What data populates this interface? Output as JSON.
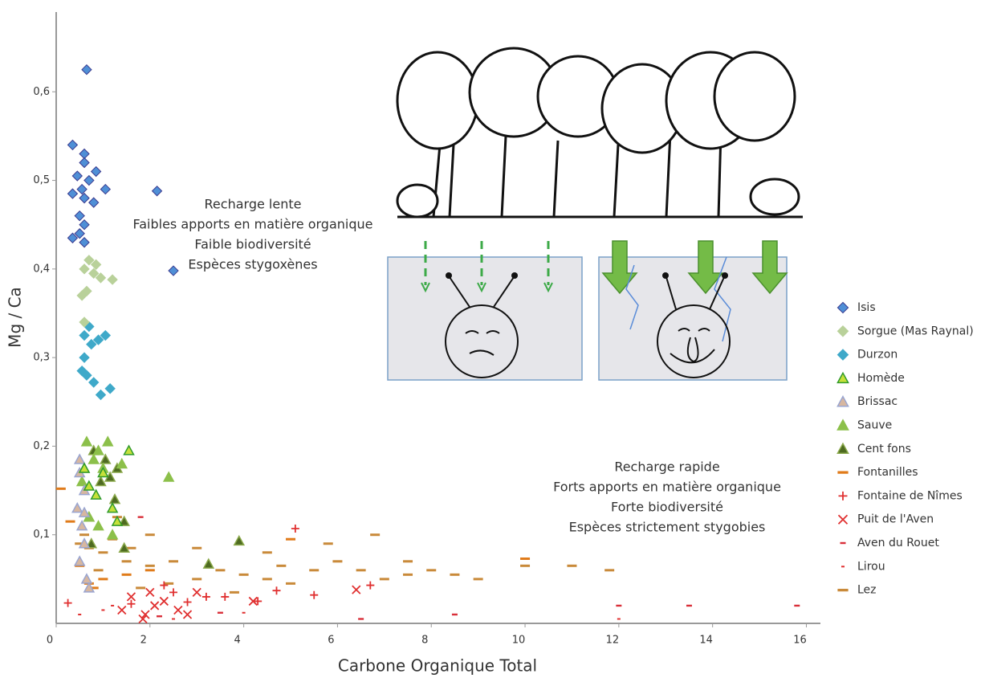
{
  "chart_data": {
    "type": "scatter",
    "x_label": "Carbone Organique Total",
    "y_label": "Mg / Ca",
    "xlim": [
      0,
      16.3
    ],
    "ylim": [
      0,
      0.69
    ],
    "xticks": [
      0,
      2,
      4,
      6,
      8,
      10,
      12,
      14,
      16
    ],
    "yticks": [
      {
        "value": 0.1,
        "label": "0,1"
      },
      {
        "value": 0.2,
        "label": "0,2"
      },
      {
        "value": 0.3,
        "label": "0,3"
      },
      {
        "value": 0.4,
        "label": "0,4"
      },
      {
        "value": 0.5,
        "label": "0,5"
      },
      {
        "value": 0.6,
        "label": "0,6"
      }
    ],
    "annotations": [
      {
        "lines": [
          "Recharge lente",
          "Faibles apports en matière organique",
          "Faible biodiversité",
          "Espèces stygoxènes"
        ]
      },
      {
        "lines": [
          "Recharge rapide",
          "Forts apports en matière organique",
          "Forte biodiversité",
          "Espèces strictement stygobies"
        ]
      }
    ],
    "series": [
      {
        "name": "Isis",
        "marker": "diamond",
        "color": "#4f8fd6",
        "edge": "#3b3b8f",
        "x": [
          0.65,
          0.35,
          0.6,
          0.6,
          0.85,
          0.45,
          0.7,
          0.55,
          1.05,
          2.15,
          0.35,
          0.6,
          0.8,
          0.5,
          0.6,
          0.5,
          0.35,
          0.6,
          2.5
        ],
        "values": [
          0.625,
          0.54,
          0.53,
          0.52,
          0.51,
          0.505,
          0.5,
          0.49,
          0.49,
          0.488,
          0.485,
          0.48,
          0.475,
          0.46,
          0.45,
          0.44,
          0.435,
          0.43,
          0.398
        ]
      },
      {
        "name": "Sorgue (Mas Raynal)",
        "marker": "diamond",
        "color": "#b9d19a",
        "edge": "#b9d19a",
        "x": [
          0.7,
          0.85,
          0.6,
          0.8,
          0.95,
          1.2,
          0.65,
          0.55,
          0.6
        ],
        "values": [
          0.41,
          0.405,
          0.4,
          0.395,
          0.39,
          0.388,
          0.375,
          0.37,
          0.34
        ]
      },
      {
        "name": "Durzon",
        "marker": "diamond",
        "color": "#3fa9c9",
        "edge": "#3fa9c9",
        "x": [
          0.7,
          0.6,
          0.9,
          0.75,
          1.05,
          0.6,
          0.55,
          0.65,
          0.8,
          1.15,
          0.95
        ],
        "values": [
          0.335,
          0.325,
          0.32,
          0.315,
          0.325,
          0.3,
          0.285,
          0.28,
          0.272,
          0.265,
          0.258
        ]
      },
      {
        "name": "Homède",
        "marker": "triangle",
        "color": "#c6e03a",
        "edge": "#2f9a2a",
        "x": [
          1.55,
          0.6,
          1.0,
          0.7,
          1.3,
          1.2,
          0.85
        ],
        "values": [
          0.195,
          0.175,
          0.17,
          0.155,
          0.115,
          0.13,
          0.145
        ]
      },
      {
        "name": "Brissac",
        "marker": "triangle",
        "color": "#d7b7a0",
        "edge": "#9aa5d0",
        "x": [
          0.5,
          0.6,
          0.45,
          0.55,
          0.6,
          0.5,
          0.65,
          0.7,
          0.6,
          0.5
        ],
        "values": [
          0.17,
          0.15,
          0.13,
          0.11,
          0.09,
          0.07,
          0.05,
          0.04,
          0.125,
          0.185
        ]
      },
      {
        "name": "Sauve",
        "marker": "triangle",
        "color": "#8cc04a",
        "edge": "#8cc04a",
        "x": [
          0.65,
          1.1,
          0.9,
          1.4,
          2.4,
          0.8,
          1.0,
          0.55,
          0.7,
          1.2,
          0.9
        ],
        "values": [
          0.205,
          0.205,
          0.195,
          0.18,
          0.165,
          0.185,
          0.175,
          0.16,
          0.12,
          0.1,
          0.11
        ]
      },
      {
        "name": "Cent fons",
        "marker": "triangle",
        "color": "#4e6b21",
        "edge": "#8aa84a",
        "x": [
          0.8,
          1.05,
          0.6,
          1.3,
          1.15,
          0.95,
          1.25,
          0.7,
          1.45,
          1.45,
          3.25,
          3.9,
          0.75
        ],
        "values": [
          0.195,
          0.185,
          0.175,
          0.175,
          0.165,
          0.16,
          0.14,
          0.12,
          0.115,
          0.085,
          0.067,
          0.093,
          0.09
        ]
      },
      {
        "name": "Fontanilles",
        "marker": "dash",
        "color": "#e07b1a",
        "x": [
          0.1,
          10,
          2.0,
          1.0,
          0.7,
          1.5,
          0.5,
          0.8,
          5,
          0.3
        ],
        "values": [
          0.152,
          0.073,
          0.06,
          0.05,
          0.045,
          0.055,
          0.065,
          0.04,
          0.095,
          0.115
        ]
      },
      {
        "name": "Fontaine de Nîmes",
        "marker": "plus",
        "color": "#e03030",
        "x": [
          5.1,
          6.7,
          4.7,
          5.5,
          3.2,
          2.8,
          1.6,
          0.25,
          2.3,
          4.3,
          3.6,
          2.5
        ],
        "values": [
          0.107,
          0.043,
          0.037,
          0.032,
          0.03,
          0.024,
          0.022,
          0.023,
          0.043,
          0.025,
          0.03,
          0.035
        ]
      },
      {
        "name": "Puit de l'Aven",
        "marker": "x",
        "color": "#e03030",
        "x": [
          1.85,
          1.9,
          2.1,
          1.6,
          2.3,
          2.6,
          2.8,
          3.0,
          4.2,
          6.4,
          1.4,
          2.0
        ],
        "values": [
          0.005,
          0.01,
          0.02,
          0.03,
          0.025,
          0.015,
          0.01,
          0.035,
          0.025,
          0.038,
          0.015,
          0.035
        ]
      },
      {
        "name": "Aven du Rouet",
        "marker": "small-dash",
        "color": "#d9303a",
        "x": [
          1.8,
          12,
          13.5,
          15.8,
          8.5,
          6.5,
          3.5,
          2.2
        ],
        "values": [
          0.12,
          0.02,
          0.02,
          0.02,
          0.01,
          0.005,
          0.012,
          0.008
        ]
      },
      {
        "name": "Lirou",
        "marker": "tiny-dash",
        "color": "#e03030",
        "x": [
          12,
          1.0,
          2.5,
          4.0,
          1.2,
          0.5
        ],
        "values": [
          0.005,
          0.015,
          0.005,
          0.012,
          0.02,
          0.01
        ]
      },
      {
        "name": "Lez",
        "marker": "dash",
        "color": "#c98a3a",
        "x": [
          0.5,
          0.7,
          1,
          1.5,
          2,
          2.5,
          3,
          3.5,
          4,
          4.5,
          5,
          5.5,
          6,
          6.5,
          7,
          7.5,
          8,
          8.5,
          9,
          10,
          11,
          11.8,
          6.8,
          4.5,
          3,
          2,
          1.2,
          0.6,
          1.3,
          5.8,
          7.5,
          3.8,
          2.4,
          1.8,
          0.9,
          1.6,
          4.8
        ],
        "values": [
          0.09,
          0.085,
          0.08,
          0.07,
          0.065,
          0.07,
          0.05,
          0.06,
          0.055,
          0.05,
          0.045,
          0.06,
          0.07,
          0.06,
          0.05,
          0.055,
          0.06,
          0.055,
          0.05,
          0.065,
          0.065,
          0.06,
          0.1,
          0.08,
          0.085,
          0.1,
          0.095,
          0.1,
          0.12,
          0.09,
          0.07,
          0.035,
          0.045,
          0.04,
          0.06,
          0.085,
          0.065
        ]
      }
    ]
  }
}
